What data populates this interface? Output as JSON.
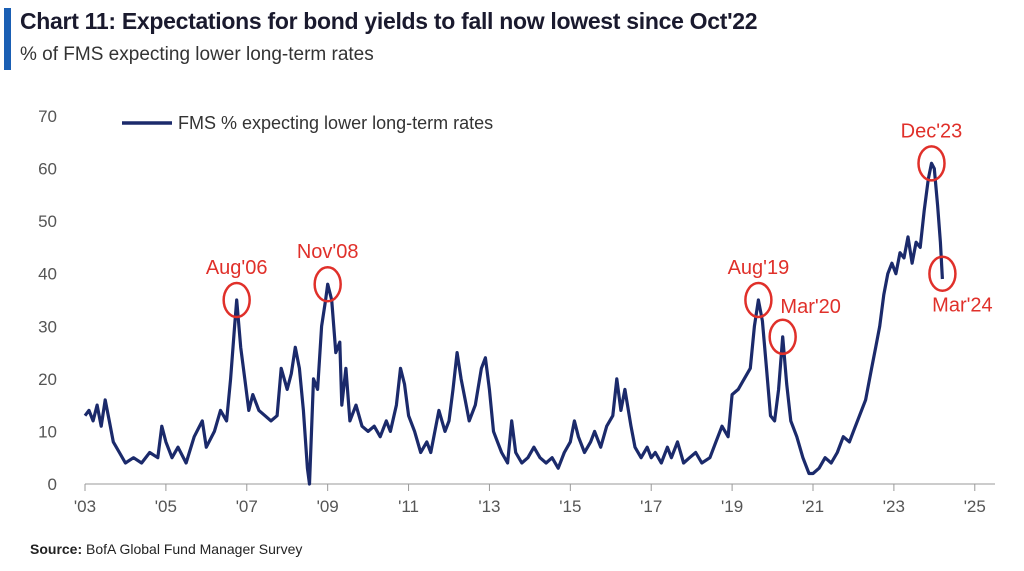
{
  "header": {
    "title": "Chart 11: Expectations for bond yields to fall now lowest since Oct'22",
    "subtitle": "% of FMS expecting lower long-term rates"
  },
  "footer": {
    "source_label": "Source:",
    "source_text": "BofA Global Fund Manager Survey"
  },
  "colors": {
    "line": "#1b2a6b",
    "annotation": "#e0302a",
    "accent": "#1a5fb4"
  },
  "chart_data": {
    "type": "line",
    "ylim": [
      0,
      70
    ],
    "xlim": [
      2003,
      2025.5
    ],
    "yticks": [
      0,
      10,
      20,
      30,
      40,
      50,
      60,
      70
    ],
    "xticks": [
      {
        "value": 2003,
        "label": "'03"
      },
      {
        "value": 2005,
        "label": "'05"
      },
      {
        "value": 2007,
        "label": "'07"
      },
      {
        "value": 2009,
        "label": "'09"
      },
      {
        "value": 2011,
        "label": "'11"
      },
      {
        "value": 2013,
        "label": "'13"
      },
      {
        "value": 2015,
        "label": "'15"
      },
      {
        "value": 2017,
        "label": "'17"
      },
      {
        "value": 2019,
        "label": "'19"
      },
      {
        "value": 2021,
        "label": "'21"
      },
      {
        "value": 2023,
        "label": "'23"
      },
      {
        "value": 2025,
        "label": "'25"
      }
    ],
    "legend": {
      "position": "top-left"
    },
    "series": [
      {
        "name": "FMS % expecting lower long-term rates",
        "points": [
          [
            2003.0,
            13
          ],
          [
            2003.1,
            14
          ],
          [
            2003.2,
            12
          ],
          [
            2003.3,
            15
          ],
          [
            2003.4,
            11
          ],
          [
            2003.5,
            16
          ],
          [
            2003.6,
            12
          ],
          [
            2003.7,
            8
          ],
          [
            2003.85,
            6
          ],
          [
            2004.0,
            4
          ],
          [
            2004.2,
            5
          ],
          [
            2004.4,
            4
          ],
          [
            2004.6,
            6
          ],
          [
            2004.8,
            5
          ],
          [
            2004.9,
            11
          ],
          [
            2005.0,
            8
          ],
          [
            2005.15,
            5
          ],
          [
            2005.3,
            7
          ],
          [
            2005.5,
            4
          ],
          [
            2005.7,
            9
          ],
          [
            2005.9,
            12
          ],
          [
            2006.0,
            7
          ],
          [
            2006.2,
            10
          ],
          [
            2006.35,
            14
          ],
          [
            2006.5,
            12
          ],
          [
            2006.6,
            20
          ],
          [
            2006.7,
            30
          ],
          [
            2006.75,
            35
          ],
          [
            2006.85,
            26
          ],
          [
            2006.95,
            20
          ],
          [
            2007.05,
            14
          ],
          [
            2007.15,
            17
          ],
          [
            2007.3,
            14
          ],
          [
            2007.45,
            13
          ],
          [
            2007.6,
            12
          ],
          [
            2007.75,
            13
          ],
          [
            2007.85,
            22
          ],
          [
            2008.0,
            18
          ],
          [
            2008.1,
            21
          ],
          [
            2008.2,
            26
          ],
          [
            2008.3,
            22
          ],
          [
            2008.4,
            14
          ],
          [
            2008.5,
            3
          ],
          [
            2008.55,
            0
          ],
          [
            2008.65,
            20
          ],
          [
            2008.75,
            18
          ],
          [
            2008.85,
            30
          ],
          [
            2008.95,
            35
          ],
          [
            2009.0,
            38
          ],
          [
            2009.1,
            35
          ],
          [
            2009.2,
            25
          ],
          [
            2009.3,
            27
          ],
          [
            2009.35,
            15
          ],
          [
            2009.45,
            22
          ],
          [
            2009.55,
            12
          ],
          [
            2009.7,
            15
          ],
          [
            2009.85,
            11
          ],
          [
            2010.0,
            10
          ],
          [
            2010.15,
            11
          ],
          [
            2010.3,
            9
          ],
          [
            2010.45,
            12
          ],
          [
            2010.55,
            10
          ],
          [
            2010.7,
            15
          ],
          [
            2010.8,
            22
          ],
          [
            2010.9,
            19
          ],
          [
            2011.0,
            13
          ],
          [
            2011.15,
            10
          ],
          [
            2011.3,
            6
          ],
          [
            2011.45,
            8
          ],
          [
            2011.55,
            6
          ],
          [
            2011.75,
            14
          ],
          [
            2011.9,
            10
          ],
          [
            2012.0,
            12
          ],
          [
            2012.1,
            18
          ],
          [
            2012.2,
            25
          ],
          [
            2012.3,
            20
          ],
          [
            2012.4,
            16
          ],
          [
            2012.5,
            12
          ],
          [
            2012.65,
            15
          ],
          [
            2012.8,
            22
          ],
          [
            2012.9,
            24
          ],
          [
            2013.0,
            18
          ],
          [
            2013.1,
            10
          ],
          [
            2013.2,
            8
          ],
          [
            2013.3,
            6
          ],
          [
            2013.45,
            4
          ],
          [
            2013.55,
            12
          ],
          [
            2013.65,
            6
          ],
          [
            2013.8,
            4
          ],
          [
            2013.95,
            5
          ],
          [
            2014.1,
            7
          ],
          [
            2014.25,
            5
          ],
          [
            2014.4,
            4
          ],
          [
            2014.55,
            5
          ],
          [
            2014.7,
            3
          ],
          [
            2014.85,
            6
          ],
          [
            2015.0,
            8
          ],
          [
            2015.1,
            12
          ],
          [
            2015.2,
            9
          ],
          [
            2015.35,
            6
          ],
          [
            2015.5,
            8
          ],
          [
            2015.6,
            10
          ],
          [
            2015.75,
            7
          ],
          [
            2015.9,
            11
          ],
          [
            2016.05,
            13
          ],
          [
            2016.15,
            20
          ],
          [
            2016.25,
            14
          ],
          [
            2016.35,
            18
          ],
          [
            2016.5,
            11
          ],
          [
            2016.6,
            7
          ],
          [
            2016.75,
            5
          ],
          [
            2016.9,
            7
          ],
          [
            2017.0,
            5
          ],
          [
            2017.1,
            6
          ],
          [
            2017.25,
            4
          ],
          [
            2017.4,
            7
          ],
          [
            2017.5,
            5
          ],
          [
            2017.65,
            8
          ],
          [
            2017.8,
            4
          ],
          [
            2017.95,
            5
          ],
          [
            2018.1,
            6
          ],
          [
            2018.25,
            4
          ],
          [
            2018.45,
            5
          ],
          [
            2018.6,
            8
          ],
          [
            2018.75,
            11
          ],
          [
            2018.9,
            9
          ],
          [
            2019.0,
            17
          ],
          [
            2019.15,
            18
          ],
          [
            2019.3,
            20
          ],
          [
            2019.45,
            22
          ],
          [
            2019.55,
            30
          ],
          [
            2019.65,
            35
          ],
          [
            2019.75,
            31
          ],
          [
            2019.85,
            22
          ],
          [
            2019.95,
            13
          ],
          [
            2020.05,
            12
          ],
          [
            2020.15,
            18
          ],
          [
            2020.25,
            28
          ],
          [
            2020.35,
            19
          ],
          [
            2020.45,
            12
          ],
          [
            2020.6,
            9
          ],
          [
            2020.75,
            5
          ],
          [
            2020.9,
            2
          ],
          [
            2021.0,
            2
          ],
          [
            2021.15,
            3
          ],
          [
            2021.3,
            5
          ],
          [
            2021.45,
            4
          ],
          [
            2021.6,
            6
          ],
          [
            2021.75,
            9
          ],
          [
            2021.9,
            8
          ],
          [
            2022.0,
            10
          ],
          [
            2022.15,
            13
          ],
          [
            2022.3,
            16
          ],
          [
            2022.45,
            22
          ],
          [
            2022.55,
            26
          ],
          [
            2022.65,
            30
          ],
          [
            2022.75,
            36
          ],
          [
            2022.85,
            40
          ],
          [
            2022.95,
            42
          ],
          [
            2023.05,
            40
          ],
          [
            2023.15,
            44
          ],
          [
            2023.25,
            43
          ],
          [
            2023.35,
            47
          ],
          [
            2023.45,
            42
          ],
          [
            2023.55,
            46
          ],
          [
            2023.65,
            45
          ],
          [
            2023.75,
            52
          ],
          [
            2023.85,
            58
          ],
          [
            2023.93,
            61
          ],
          [
            2024.0,
            60
          ],
          [
            2024.08,
            53
          ],
          [
            2024.15,
            46
          ],
          [
            2024.2,
            39
          ]
        ]
      }
    ],
    "annotations": [
      {
        "label": "Aug'06",
        "x": 2006.75,
        "y": 35,
        "label_pos": "above"
      },
      {
        "label": "Nov'08",
        "x": 2009.0,
        "y": 38,
        "label_pos": "above"
      },
      {
        "label": "Aug'19",
        "x": 2019.65,
        "y": 35,
        "label_pos": "above"
      },
      {
        "label": "Mar'20",
        "x": 2020.25,
        "y": 28,
        "label_pos": "above-right"
      },
      {
        "label": "Dec'23",
        "x": 2023.93,
        "y": 61,
        "label_pos": "above"
      },
      {
        "label": "Mar'24",
        "x": 2024.2,
        "y": 40,
        "label_pos": "below"
      }
    ]
  }
}
